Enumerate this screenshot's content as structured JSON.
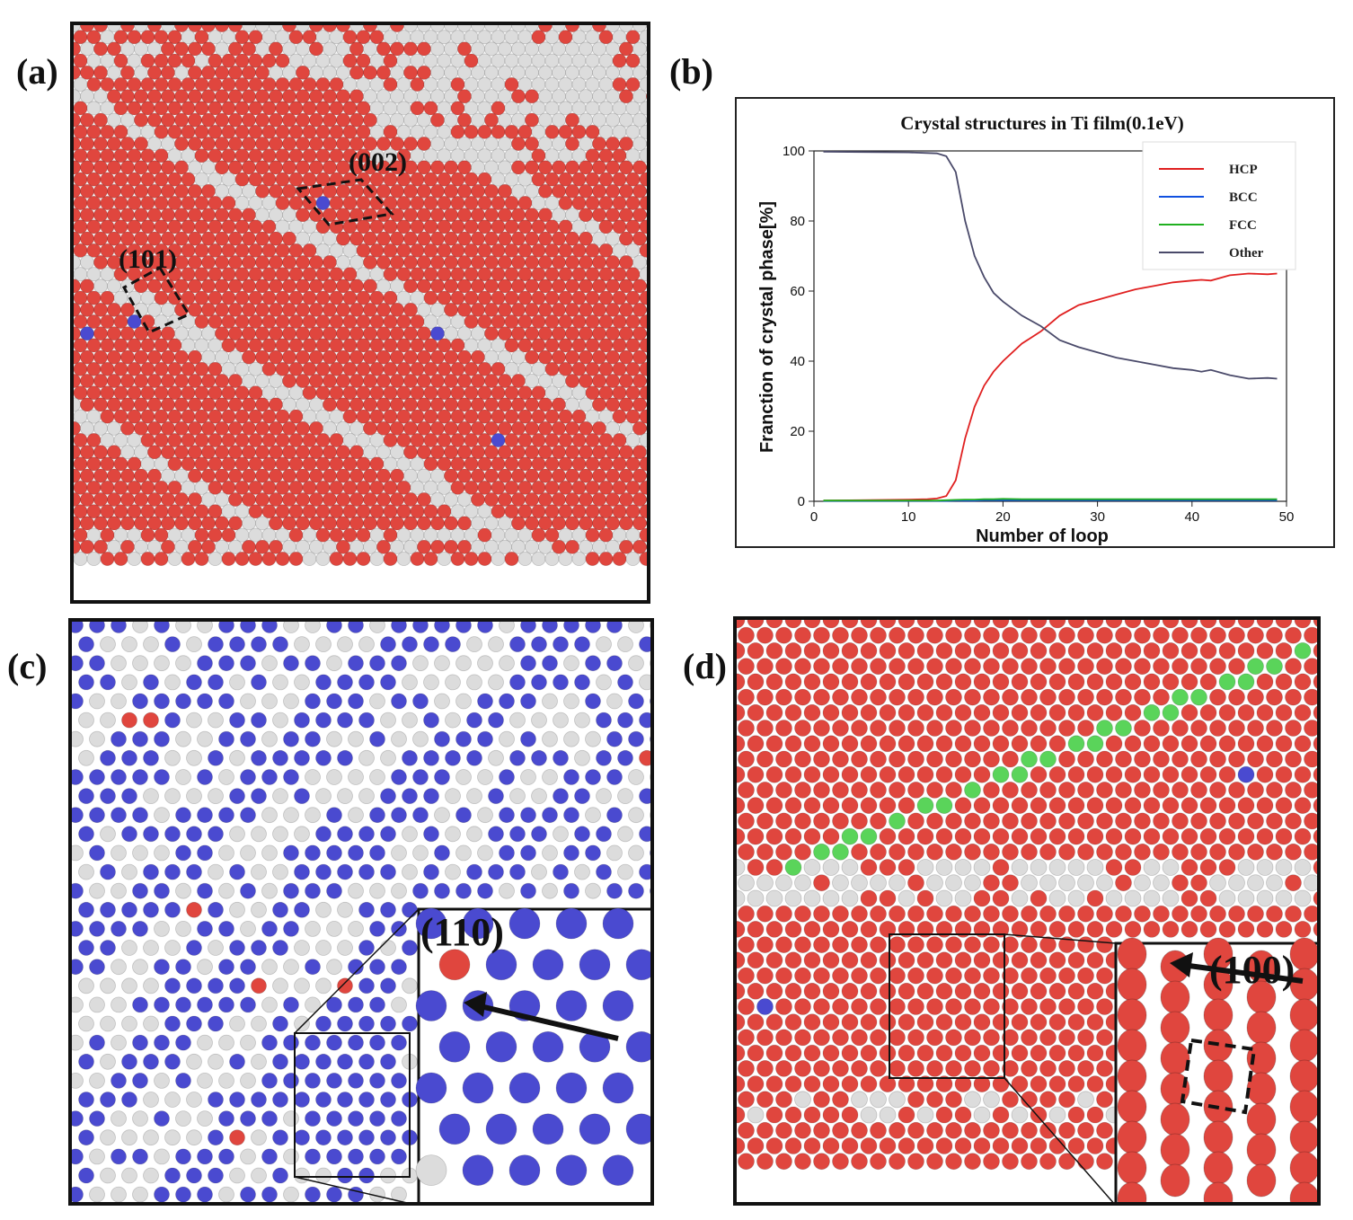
{
  "panels": {
    "a": {
      "label": "(a)",
      "annotations": [
        "(002)",
        "(101)"
      ]
    },
    "b": {
      "label": "(b)"
    },
    "c": {
      "label": "(c)",
      "inset_label": "(110)"
    },
    "d": {
      "label": "(d)",
      "inset_label": "(100)"
    }
  },
  "colors": {
    "hcp_atom": "#e0463e",
    "other_atom": "#dcdcdc",
    "bcc_atom": "#4a4ad0",
    "fcc_atom": "#5ad45a",
    "hcp_line": "#e02020",
    "bcc_line": "#1050e0",
    "fcc_line": "#20b020",
    "other_line": "#4a4a6a"
  },
  "chart_data": {
    "type": "line",
    "title": "Crystal structures in Ti film(0.1eV)",
    "xlabel": "Number of loop",
    "ylabel": "Franction of crystal phase[%]",
    "xlim": [
      0,
      50
    ],
    "ylim": [
      0,
      100
    ],
    "xticks": [
      0,
      10,
      20,
      30,
      40,
      50
    ],
    "yticks": [
      0,
      20,
      40,
      60,
      80,
      100
    ],
    "x": [
      1,
      5,
      10,
      12,
      13,
      14,
      15,
      16,
      17,
      18,
      19,
      20,
      22,
      24,
      26,
      28,
      30,
      32,
      34,
      36,
      38,
      40,
      41,
      42,
      44,
      46,
      48,
      49
    ],
    "series": [
      {
        "name": "HCP",
        "color": "#e02020",
        "values": [
          0.2,
          0.3,
          0.5,
          0.6,
          0.8,
          1.5,
          6,
          18,
          27,
          33,
          37,
          40,
          45,
          48.5,
          53,
          56,
          57.5,
          59,
          60.5,
          61.5,
          62.5,
          63,
          63.2,
          63,
          64.5,
          65,
          64.8,
          65
        ]
      },
      {
        "name": "BCC",
        "color": "#1050e0",
        "values": [
          0.1,
          0.1,
          0.1,
          0.1,
          0.1,
          0.1,
          0.2,
          0.2,
          0.2,
          0.3,
          0.3,
          0.3,
          0.3,
          0.3,
          0.3,
          0.3,
          0.3,
          0.3,
          0.3,
          0.3,
          0.3,
          0.3,
          0.3,
          0.3,
          0.3,
          0.3,
          0.3,
          0.3
        ]
      },
      {
        "name": "FCC",
        "color": "#20b020",
        "values": [
          0.2,
          0.2,
          0.2,
          0.2,
          0.2,
          0.3,
          0.4,
          0.5,
          0.5,
          0.6,
          0.6,
          0.7,
          0.6,
          0.6,
          0.6,
          0.6,
          0.6,
          0.6,
          0.6,
          0.6,
          0.6,
          0.6,
          0.6,
          0.6,
          0.6,
          0.6,
          0.6,
          0.6
        ]
      },
      {
        "name": "Other",
        "color": "#4a4a6a",
        "values": [
          99.8,
          99.7,
          99.6,
          99.4,
          99.3,
          98.5,
          94,
          80,
          70,
          64,
          59.5,
          57,
          53,
          50,
          46,
          44,
          42.5,
          41,
          40,
          39,
          38,
          37.5,
          37,
          37.5,
          36,
          35,
          35.2,
          35
        ]
      }
    ],
    "legend": {
      "entries": [
        "HCP",
        "BCC",
        "FCC",
        "Other"
      ],
      "placement": "top-right"
    }
  }
}
